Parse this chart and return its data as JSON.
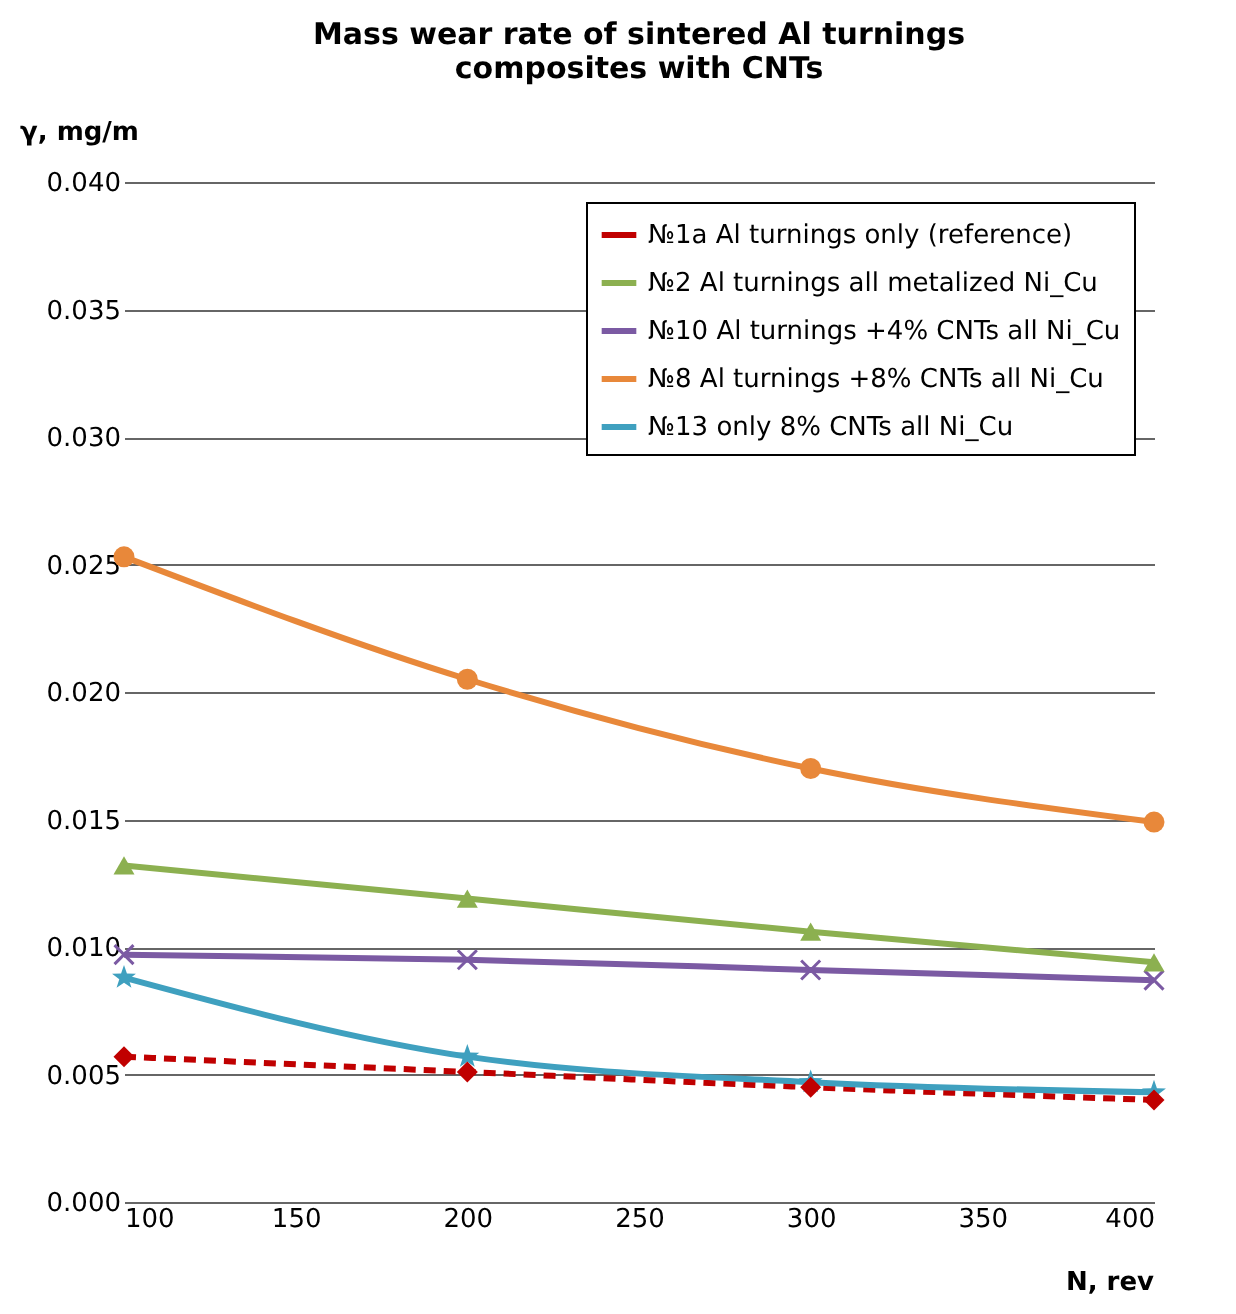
{
  "chart_data": {
    "type": "line",
    "title": "Mass wear rate of sintered  Al  turnings\ncomposites with CNTs",
    "xlabel": "N, rev",
    "ylabel": "γ, mg/m",
    "x": [
      100,
      200,
      300,
      400
    ],
    "xlim": [
      100,
      400
    ],
    "xticks": [
      100,
      150,
      200,
      250,
      300,
      350,
      400
    ],
    "ylim": [
      0,
      0.04
    ],
    "yticks": [
      {
        "value": 0,
        "label": "0.000"
      },
      {
        "value": 0.005,
        "label": "0.005"
      },
      {
        "value": 0.01,
        "label": "0.010"
      },
      {
        "value": 0.015,
        "label": "0.015"
      },
      {
        "value": 0.02,
        "label": "0.020"
      },
      {
        "value": 0.025,
        "label": "0.025"
      },
      {
        "value": 0.03,
        "label": "0.030"
      },
      {
        "value": 0.035,
        "label": "0.035"
      },
      {
        "value": 0.04,
        "label": "0.040"
      }
    ],
    "grid": "y",
    "legend": "top right",
    "series": [
      {
        "name": "№1a Al turnings only (reference)",
        "color": "#c00000",
        "marker": "diamond",
        "line_style": "dashed",
        "values": [
          0.0057,
          0.0051,
          0.0045,
          0.004
        ]
      },
      {
        "name": "№2 Al turnings all metalized Ni_Cu",
        "color": "#8cb050",
        "marker": "triangle",
        "line_style": "solid",
        "values": [
          0.0132,
          0.0119,
          0.0106,
          0.0094
        ]
      },
      {
        "name": "№10 Al turnings +4% CNTs all Ni_Cu",
        "color": "#7b5aa3",
        "marker": "cross",
        "line_style": "solid",
        "values": [
          0.0097,
          0.0095,
          0.0091,
          0.0087
        ]
      },
      {
        "name": "№8 Al turnings +8% CNTs all Ni_Cu",
        "color": "#e8883a",
        "marker": "circle",
        "line_style": "solid",
        "values": [
          0.0253,
          0.0205,
          0.017,
          0.0149
        ]
      },
      {
        "name": "№13 only 8% CNTs all Ni_Cu",
        "color": "#3fa0bf",
        "marker": "star",
        "line_style": "solid",
        "values": [
          0.0088,
          0.0057,
          0.0047,
          0.0043
        ]
      }
    ]
  }
}
